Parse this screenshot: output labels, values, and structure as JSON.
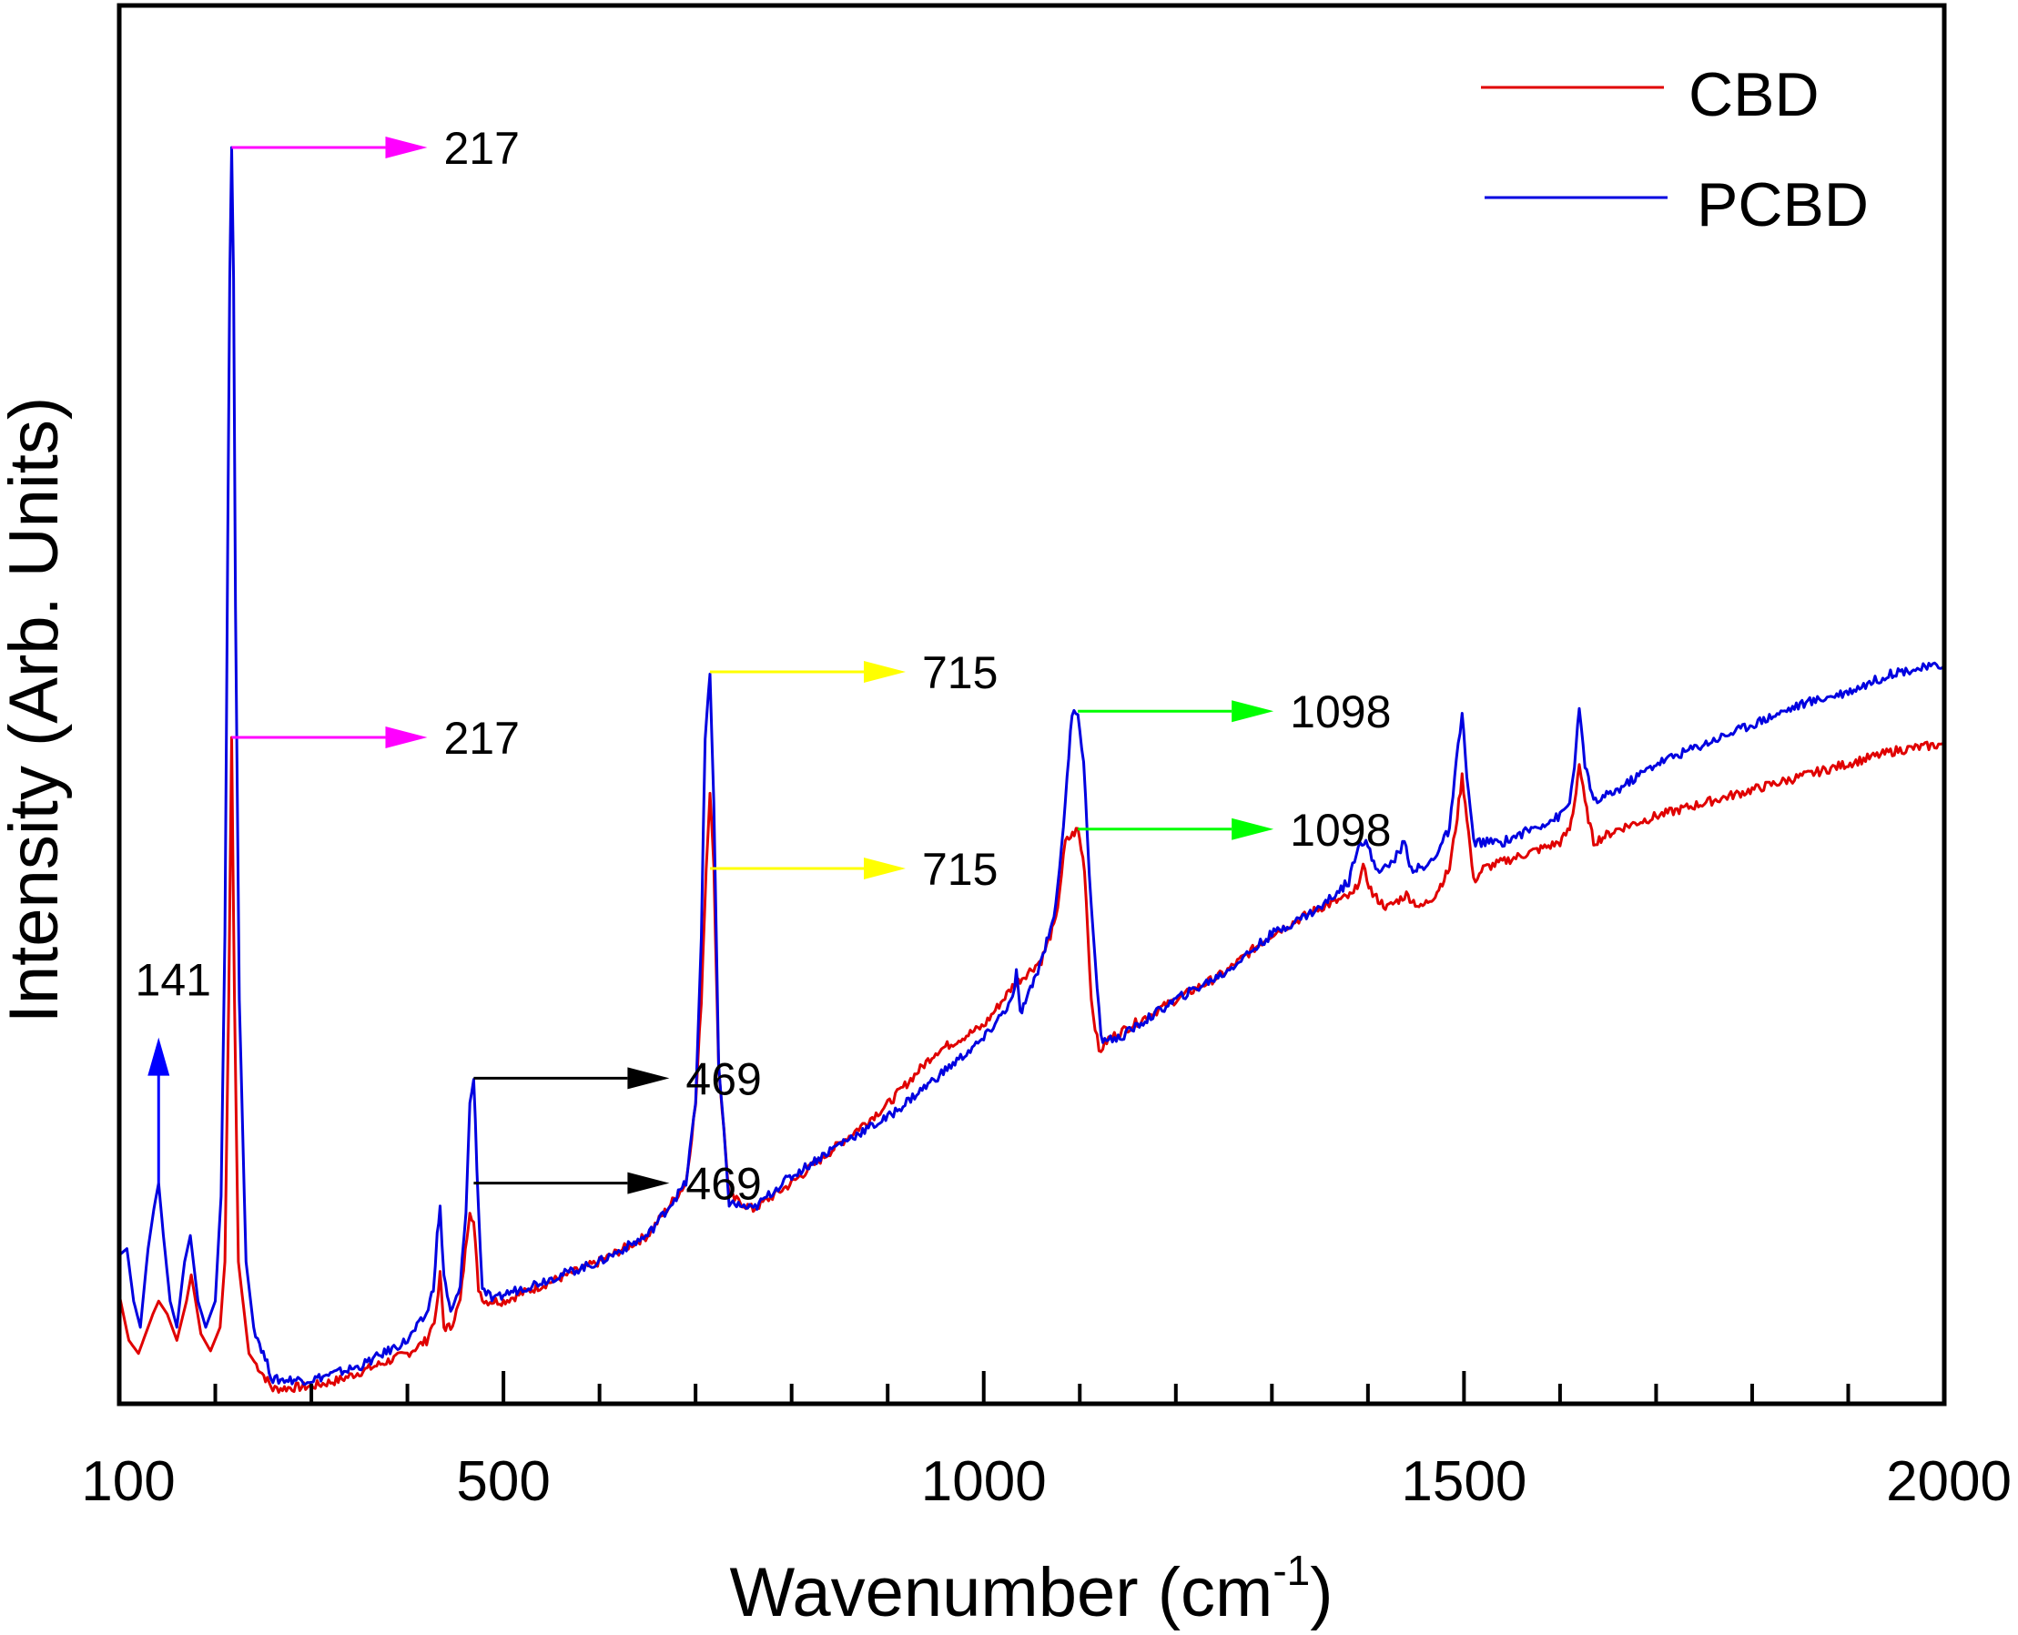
{
  "chart_data": {
    "type": "line",
    "title": "",
    "xlabel": "Wavenumber (cm",
    "xlabel_sup": "-1",
    "xlabel_close": ")",
    "ylabel": "Intensity (Arb. Units)",
    "xlim": [
      100,
      2000
    ],
    "ylim": [
      0,
      100
    ],
    "x_ticks": [
      100,
      500,
      1000,
      1500,
      2000
    ],
    "x_tick_labels": [
      "100",
      "500",
      "1000",
      "1500",
      "2000"
    ],
    "y_tick_labels_shown": false,
    "grid": false,
    "legend_position": "top-right",
    "series": [
      {
        "name": "CBD",
        "color": "#e00000",
        "points": [
          [
            100,
            7.5
          ],
          [
            110,
            4
          ],
          [
            120,
            3
          ],
          [
            135,
            6
          ],
          [
            141,
            7
          ],
          [
            150,
            6
          ],
          [
            160,
            4
          ],
          [
            170,
            7
          ],
          [
            175,
            9
          ],
          [
            185,
            4.5
          ],
          [
            195,
            3.2
          ],
          [
            205,
            5
          ],
          [
            210,
            10
          ],
          [
            214,
            30
          ],
          [
            217,
            50
          ],
          [
            220,
            30
          ],
          [
            224,
            10
          ],
          [
            235,
            3
          ],
          [
            260,
            0.3
          ],
          [
            300,
            0.5
          ],
          [
            330,
            1
          ],
          [
            400,
            3
          ],
          [
            420,
            4
          ],
          [
            430,
            6
          ],
          [
            434,
            9
          ],
          [
            438,
            5
          ],
          [
            445,
            5
          ],
          [
            455,
            7
          ],
          [
            462,
            12
          ],
          [
            465,
            14
          ],
          [
            469,
            13
          ],
          [
            474,
            8
          ],
          [
            480,
            7
          ],
          [
            500,
            7
          ],
          [
            600,
            10
          ],
          [
            650,
            12
          ],
          [
            690,
            16
          ],
          [
            700,
            22
          ],
          [
            706,
            30
          ],
          [
            711,
            40
          ],
          [
            715,
            46
          ],
          [
            719,
            40
          ],
          [
            724,
            25
          ],
          [
            735,
            15
          ],
          [
            760,
            14
          ],
          [
            800,
            16
          ],
          [
            850,
            19
          ],
          [
            900,
            22
          ],
          [
            950,
            26
          ],
          [
            1000,
            28
          ],
          [
            1030,
            31
          ],
          [
            1060,
            33
          ],
          [
            1075,
            36
          ],
          [
            1085,
            42
          ],
          [
            1098,
            43
          ],
          [
            1105,
            40
          ],
          [
            1112,
            30
          ],
          [
            1120,
            26
          ],
          [
            1130,
            27
          ],
          [
            1200,
            30
          ],
          [
            1250,
            32
          ],
          [
            1300,
            35
          ],
          [
            1350,
            37
          ],
          [
            1385,
            38
          ],
          [
            1395,
            40
          ],
          [
            1405,
            38
          ],
          [
            1420,
            37
          ],
          [
            1440,
            38
          ],
          [
            1455,
            37
          ],
          [
            1470,
            38
          ],
          [
            1485,
            40
          ],
          [
            1493,
            44
          ],
          [
            1498,
            47
          ],
          [
            1503,
            44
          ],
          [
            1510,
            39
          ],
          [
            1520,
            40
          ],
          [
            1560,
            41
          ],
          [
            1600,
            42
          ],
          [
            1610,
            43
          ],
          [
            1615,
            45
          ],
          [
            1620,
            48
          ],
          [
            1626,
            45
          ],
          [
            1635,
            42
          ],
          [
            1660,
            43
          ],
          [
            1700,
            44
          ],
          [
            1750,
            45
          ],
          [
            1800,
            46
          ],
          [
            1850,
            47
          ],
          [
            1900,
            48
          ],
          [
            1950,
            49
          ],
          [
            2000,
            49.5
          ]
        ]
      },
      {
        "name": "PCBD",
        "color": "#0000e0",
        "points": [
          [
            100,
            10.5
          ],
          [
            108,
            11
          ],
          [
            115,
            7
          ],
          [
            122,
            5
          ],
          [
            130,
            11
          ],
          [
            136,
            14
          ],
          [
            141,
            16
          ],
          [
            146,
            12
          ],
          [
            153,
            7
          ],
          [
            160,
            5
          ],
          [
            168,
            10
          ],
          [
            174,
            12
          ],
          [
            182,
            7
          ],
          [
            190,
            5
          ],
          [
            200,
            7
          ],
          [
            206,
            15
          ],
          [
            210,
            35
          ],
          [
            213,
            65
          ],
          [
            215,
            85
          ],
          [
            217,
            95
          ],
          [
            219,
            85
          ],
          [
            221,
            60
          ],
          [
            225,
            30
          ],
          [
            232,
            10
          ],
          [
            240,
            5
          ],
          [
            260,
            1
          ],
          [
            300,
            1
          ],
          [
            350,
            2
          ],
          [
            400,
            4
          ],
          [
            420,
            6
          ],
          [
            427,
            8
          ],
          [
            431,
            12
          ],
          [
            434,
            14
          ],
          [
            438,
            9
          ],
          [
            445,
            6
          ],
          [
            455,
            8
          ],
          [
            461,
            14
          ],
          [
            465,
            22
          ],
          [
            469,
            24
          ],
          [
            474,
            14
          ],
          [
            478,
            8
          ],
          [
            490,
            7
          ],
          [
            500,
            7.5
          ],
          [
            600,
            10
          ],
          [
            650,
            12
          ],
          [
            690,
            16
          ],
          [
            700,
            22
          ],
          [
            706,
            35
          ],
          [
            710,
            50
          ],
          [
            715,
            55
          ],
          [
            719,
            45
          ],
          [
            724,
            25
          ],
          [
            735,
            14.5
          ],
          [
            760,
            14
          ],
          [
            790,
            16
          ],
          [
            800,
            16.5
          ],
          [
            850,
            19
          ],
          [
            900,
            21
          ],
          [
            950,
            24
          ],
          [
            1000,
            27
          ],
          [
            1020,
            29
          ],
          [
            1030,
            30
          ],
          [
            1034,
            32
          ],
          [
            1038,
            29
          ],
          [
            1045,
            30
          ],
          [
            1060,
            33
          ],
          [
            1075,
            37
          ],
          [
            1085,
            45
          ],
          [
            1092,
            52
          ],
          [
            1098,
            52
          ],
          [
            1104,
            48
          ],
          [
            1112,
            37
          ],
          [
            1122,
            27
          ],
          [
            1140,
            27
          ],
          [
            1200,
            30
          ],
          [
            1250,
            32
          ],
          [
            1300,
            35
          ],
          [
            1350,
            37
          ],
          [
            1380,
            39
          ],
          [
            1390,
            42
          ],
          [
            1398,
            42
          ],
          [
            1408,
            40
          ],
          [
            1420,
            40
          ],
          [
            1430,
            41
          ],
          [
            1438,
            42
          ],
          [
            1445,
            40
          ],
          [
            1460,
            40
          ],
          [
            1470,
            41
          ],
          [
            1485,
            43
          ],
          [
            1492,
            48
          ],
          [
            1498,
            52
          ],
          [
            1503,
            47
          ],
          [
            1510,
            42
          ],
          [
            1540,
            42
          ],
          [
            1570,
            43
          ],
          [
            1600,
            44
          ],
          [
            1610,
            45
          ],
          [
            1615,
            48
          ],
          [
            1620,
            52
          ],
          [
            1626,
            48
          ],
          [
            1635,
            45
          ],
          [
            1660,
            46
          ],
          [
            1700,
            48
          ],
          [
            1750,
            49.5
          ],
          [
            1800,
            51
          ],
          [
            1850,
            52.5
          ],
          [
            1900,
            53.5
          ],
          [
            1950,
            55
          ],
          [
            2000,
            55.5
          ]
        ]
      }
    ],
    "annotations": [
      {
        "label": "217",
        "series": "PCBD",
        "x": 217,
        "y": 95,
        "color": "#ff00ff",
        "direction": "right"
      },
      {
        "label": "217",
        "series": "CBD",
        "x": 217,
        "y": 50,
        "color": "#ff00ff",
        "direction": "right"
      },
      {
        "label": "715",
        "series": "PCBD",
        "x": 715,
        "y": 55,
        "color": "#ffff00",
        "direction": "right"
      },
      {
        "label": "715",
        "series": "CBD",
        "x": 715,
        "y": 40,
        "color": "#ffff00",
        "direction": "right"
      },
      {
        "label": "1098",
        "series": "PCBD",
        "x": 1098,
        "y": 52,
        "color": "#00ff00",
        "direction": "right"
      },
      {
        "label": "1098",
        "series": "CBD",
        "x": 1098,
        "y": 43,
        "color": "#00ff00",
        "direction": "right"
      },
      {
        "label": "469",
        "series": "PCBD",
        "x": 469,
        "y": 24,
        "color": "#000000",
        "direction": "right"
      },
      {
        "label": "469",
        "series": "CBD",
        "x": 469,
        "y": 16,
        "color": "#000000",
        "direction": "right"
      },
      {
        "label": "141",
        "series": "PCBD",
        "x": 141,
        "y": 16,
        "color": "#0000ff",
        "direction": "up"
      }
    ]
  }
}
